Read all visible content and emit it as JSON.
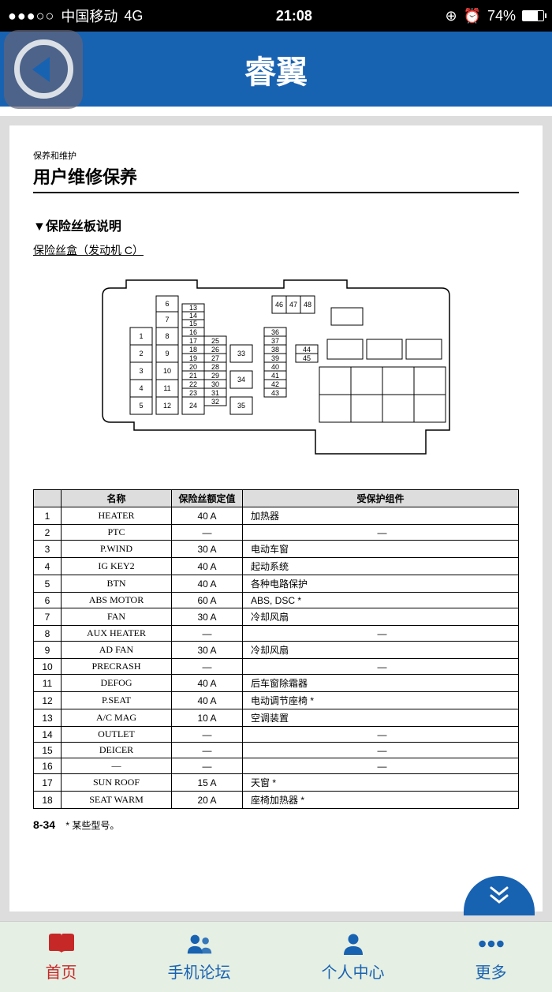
{
  "status": {
    "signal": "●●●○○",
    "carrier": "中国移动",
    "network": "4G",
    "time": "21:08",
    "lock": "⊕",
    "alarm": "⏰",
    "battery": "74%",
    "batt_icon": "▮"
  },
  "nav": {
    "title": "睿翼"
  },
  "doc": {
    "breadcrumb": "保养和维护",
    "title": "用户维修保养",
    "section": "▼保险丝板说明",
    "subsection": "保险丝盒（发动机 C）",
    "table_headers": {
      "idx": "",
      "name": "名称",
      "rating": "保险丝额定值",
      "component": "受保护组件"
    },
    "rows": [
      {
        "i": "1",
        "n": "HEATER",
        "r": "40 A",
        "c": "加热器"
      },
      {
        "i": "2",
        "n": "PTC",
        "r": "—",
        "c": "—"
      },
      {
        "i": "3",
        "n": "P.WIND",
        "r": "30 A",
        "c": "电动车窗"
      },
      {
        "i": "4",
        "n": "IG KEY2",
        "r": "40 A",
        "c": "起动系统"
      },
      {
        "i": "5",
        "n": "BTN",
        "r": "40 A",
        "c": "各种电路保护"
      },
      {
        "i": "6",
        "n": "ABS MOTOR",
        "r": "60 A",
        "c": "ABS, DSC *"
      },
      {
        "i": "7",
        "n": "FAN",
        "r": "30 A",
        "c": "冷却风扇"
      },
      {
        "i": "8",
        "n": "AUX HEATER",
        "r": "—",
        "c": "—"
      },
      {
        "i": "9",
        "n": "AD FAN",
        "r": "30 A",
        "c": "冷却风扇"
      },
      {
        "i": "10",
        "n": "PRECRASH",
        "r": "—",
        "c": "—"
      },
      {
        "i": "11",
        "n": "DEFOG",
        "r": "40 A",
        "c": "后车窗除霜器"
      },
      {
        "i": "12",
        "n": "P.SEAT",
        "r": "40 A",
        "c": "电动调节座椅 *"
      },
      {
        "i": "13",
        "n": "A/C MAG",
        "r": "10 A",
        "c": "空调装置"
      },
      {
        "i": "14",
        "n": "OUTLET",
        "r": "—",
        "c": "—"
      },
      {
        "i": "15",
        "n": "DEICER",
        "r": "—",
        "c": "—"
      },
      {
        "i": "16",
        "n": "—",
        "r": "—",
        "c": "—"
      },
      {
        "i": "17",
        "n": "SUN ROOF",
        "r": "15 A",
        "c": "天窗 *"
      },
      {
        "i": "18",
        "n": "SEAT WARM",
        "r": "20 A",
        "c": "座椅加热器 *"
      }
    ],
    "page_num": "8-34",
    "footnote": "* 某些型号。"
  },
  "tabs": [
    {
      "label": "首页",
      "active": true
    },
    {
      "label": "手机论坛",
      "active": false
    },
    {
      "label": "个人中心",
      "active": false
    },
    {
      "label": "更多",
      "active": false
    }
  ],
  "diagram": {
    "fuses": [
      1,
      2,
      3,
      4,
      5,
      6,
      7,
      8,
      9,
      10,
      11,
      12,
      13,
      14,
      15,
      16,
      17,
      18,
      19,
      20,
      21,
      22,
      23,
      24,
      25,
      26,
      27,
      28,
      29,
      30,
      31,
      32,
      33,
      34,
      35,
      36,
      37,
      38,
      39,
      40,
      41,
      42,
      43,
      44,
      45,
      46,
      47,
      48
    ]
  },
  "colors": {
    "header": "#1862b2",
    "active_tab": "#c62828",
    "tab": "#1862b2",
    "tabbar_bg": "#e5efe3",
    "table_header_bg": "#dddddd"
  }
}
